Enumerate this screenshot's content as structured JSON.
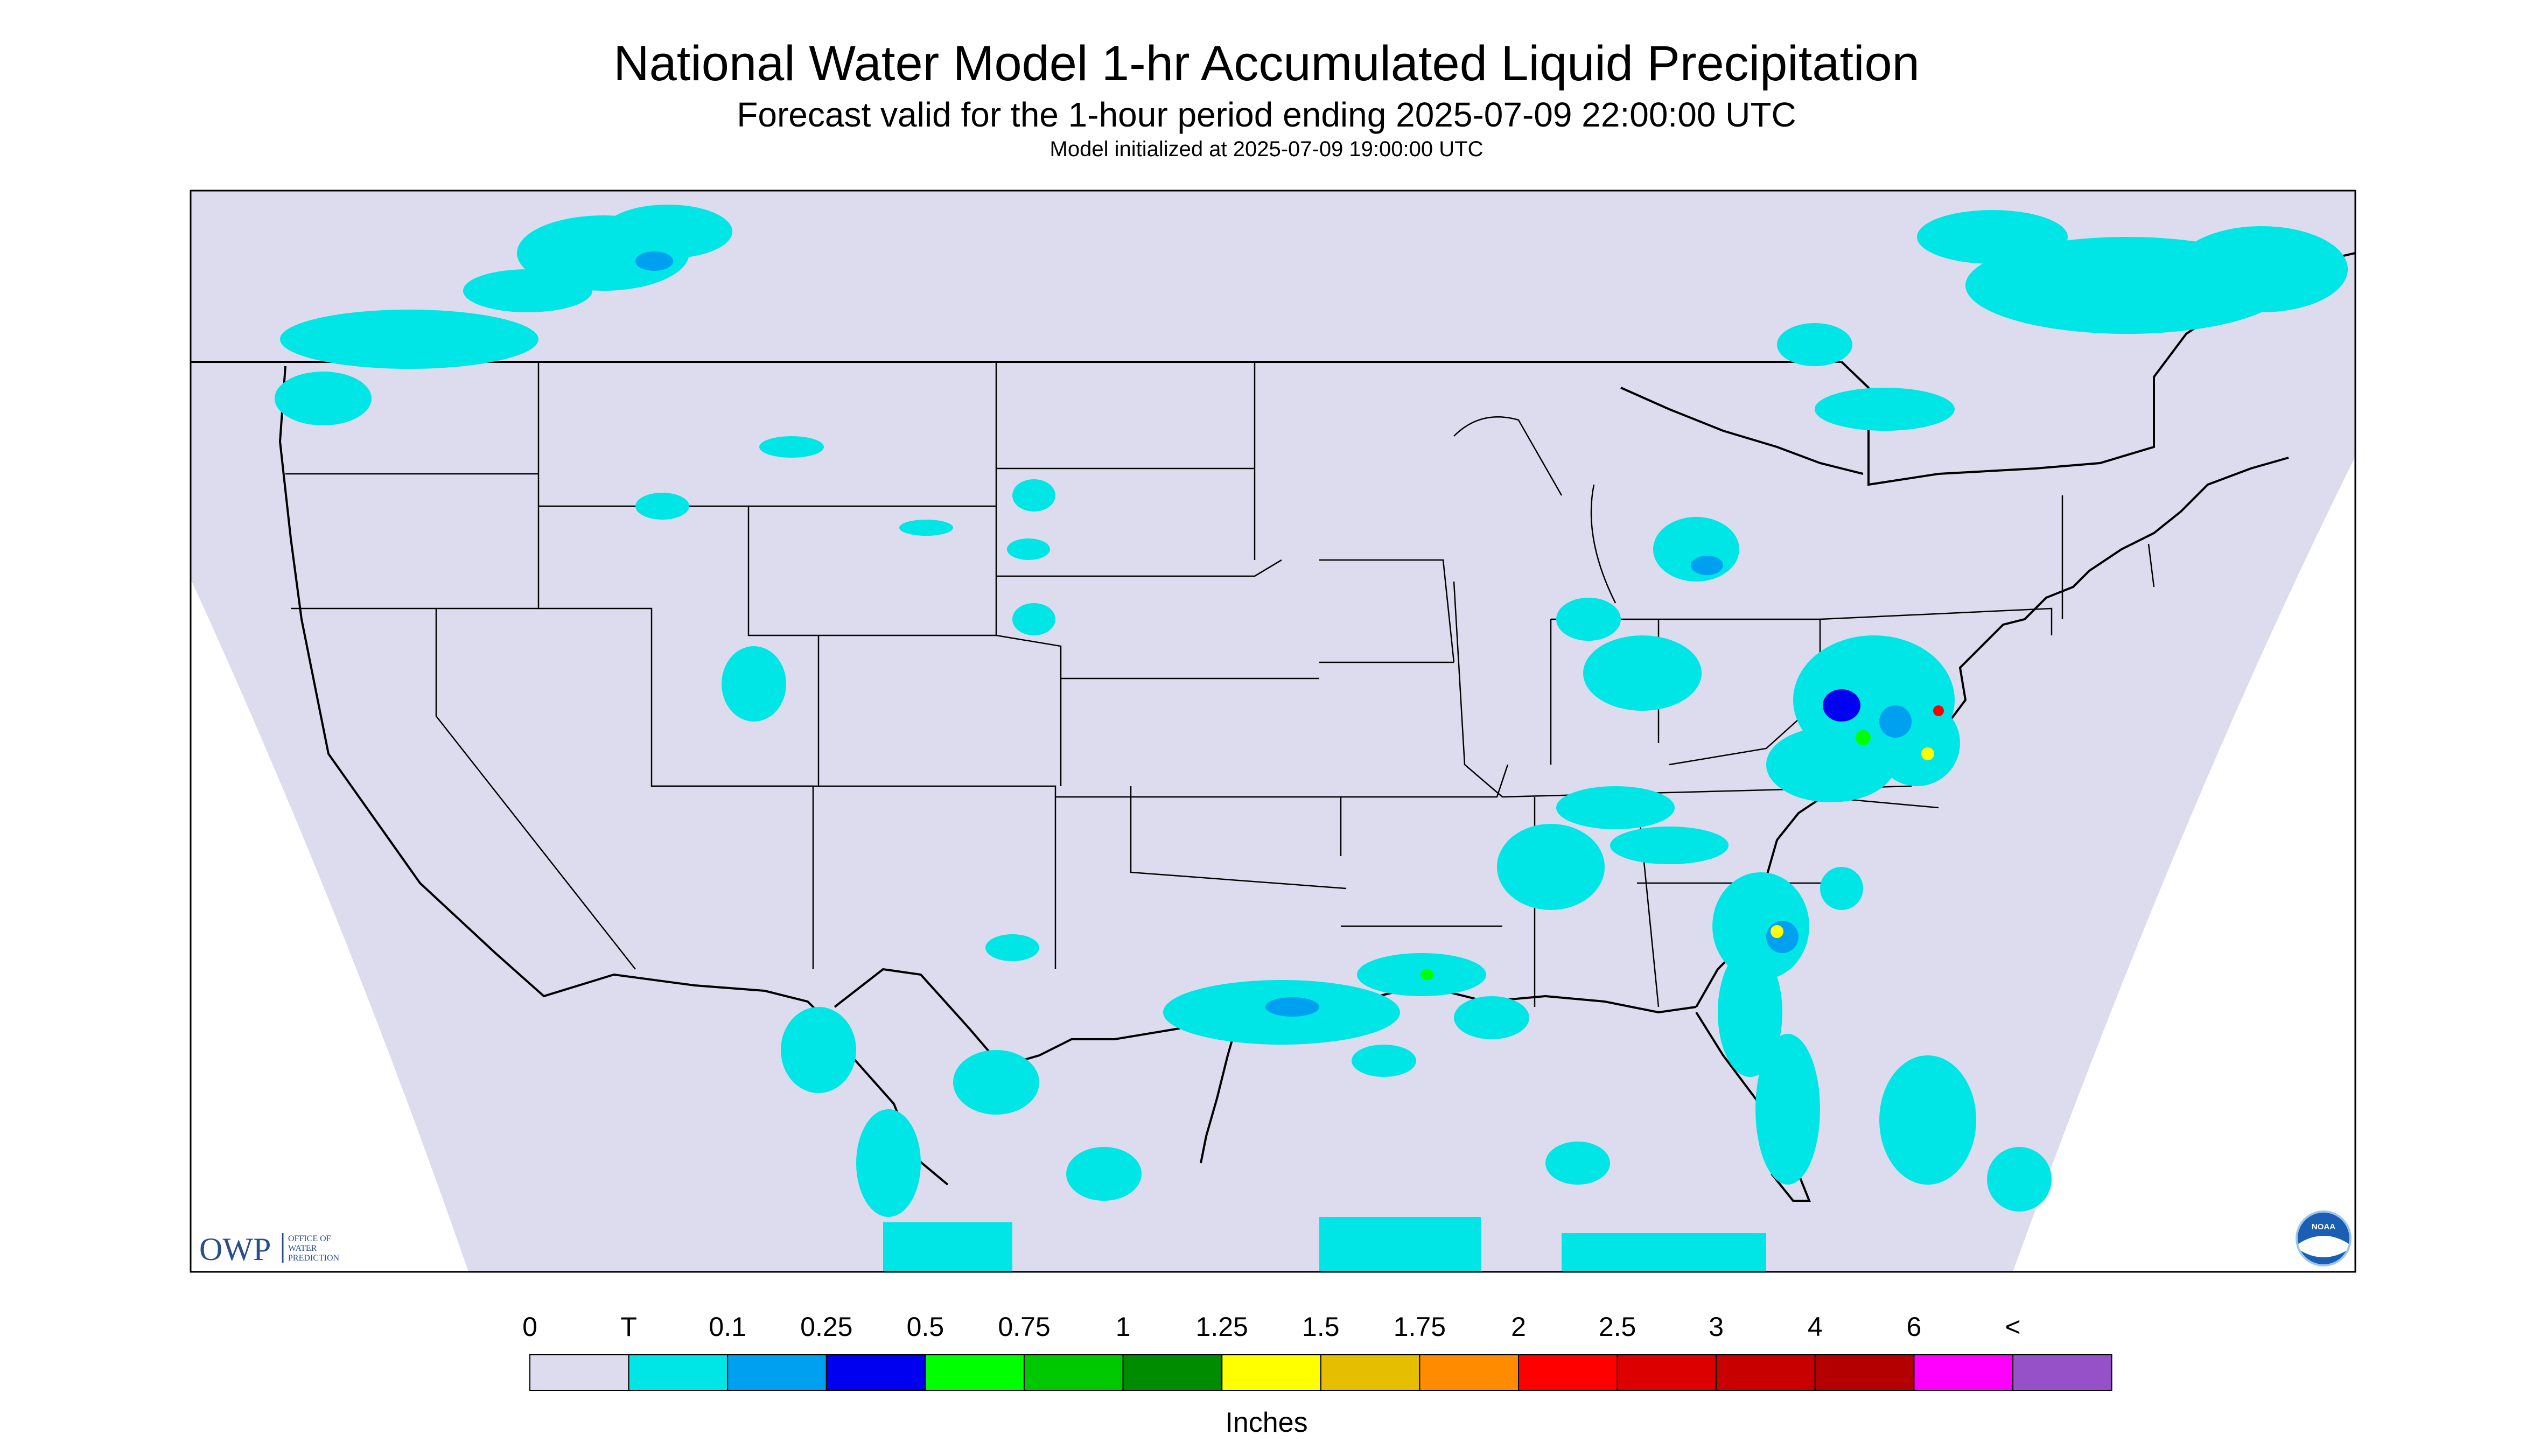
{
  "header": {
    "title": "National Water Model 1-hr Accumulated Liquid Precipitation",
    "subtitle": "Forecast valid for the 1-hour period ending 2025-07-09 22:00:00 UTC",
    "init_line": "Model initialized at 2025-07-09 19:00:00 UTC"
  },
  "logos": {
    "owp_mark": "OWP",
    "owp_text": [
      "OFFICE OF",
      "WATER",
      "PREDICTION"
    ],
    "noaa_text": "NOAA"
  },
  "legend": {
    "labels": [
      "0",
      "T",
      "0.1",
      "0.25",
      "0.5",
      "0.75",
      "1",
      "1.25",
      "1.5",
      "1.75",
      "2",
      "2.5",
      "3",
      "4",
      "6",
      "<"
    ],
    "colors": [
      "#dcdcee",
      "#00e5e5",
      "#00a0f0",
      "#0000f0",
      "#00ff00",
      "#00c800",
      "#008c00",
      "#ffff00",
      "#e6be00",
      "#ff8c00",
      "#ff0000",
      "#dc0000",
      "#c80000",
      "#b40000",
      "#ff00ff",
      "#9650c8"
    ],
    "units": "Inches"
  },
  "colors": {
    "map_fill": "#dcdcee",
    "outside": "#ffffff",
    "border": "#000000",
    "precip_trace": "#00e5e5",
    "precip_light": "#00a0f0",
    "precip_mid": "#0000f0",
    "precip_green": "#00ff00",
    "precip_yellow": "#ffff00",
    "precip_red": "#ff0000"
  }
}
